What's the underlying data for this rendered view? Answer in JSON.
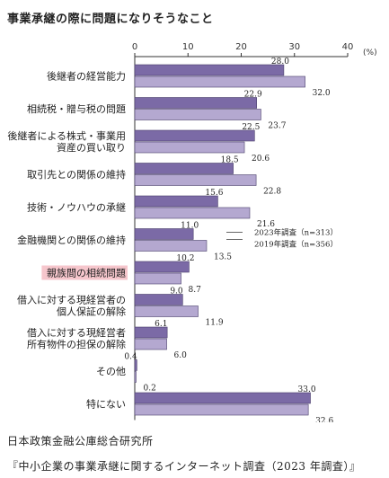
{
  "title": "事業承継の際に問題になりそうなこと",
  "footer": {
    "source": "日本政策金融公庫総合研究所",
    "survey": "『中小企業の事業承継に関するインターネット調査（2023 年調査）』"
  },
  "chart_data": {
    "type": "bar",
    "orientation": "horizontal",
    "unit_label": "(%)",
    "xlim": [
      0,
      40
    ],
    "ticks": [
      0,
      10,
      20,
      30,
      40
    ],
    "grid": false,
    "categories": [
      "後継者の経営能力",
      "相続税・贈与税の問題",
      "後継者による株式・事業用\n資産の買い取り",
      "取引先との関係の維持",
      "技術・ノウハウの承継",
      "金融機関との関係の維持",
      "親族間の相続問題",
      "借入に対する現経営者の\n個人保証の解除",
      "借入に対する現経営者\n所有物件の担保の解除",
      "その他",
      "特にない"
    ],
    "highlight_category": "親族間の相続問題",
    "series": [
      {
        "name": "2023年調査（n=313）",
        "color": "#7b6aa6",
        "values": [
          28.0,
          22.9,
          22.5,
          18.5,
          15.6,
          11.0,
          10.2,
          9.0,
          6.1,
          0.4,
          33.0
        ]
      },
      {
        "name": "2019年調査（n=356）",
        "color": "#b4a8d0",
        "values": [
          32.0,
          23.7,
          20.6,
          22.8,
          21.6,
          13.5,
          8.7,
          11.9,
          6.0,
          0.2,
          32.6
        ]
      }
    ],
    "legend_placement": "inline, beside 金融機関との関係の維持"
  }
}
